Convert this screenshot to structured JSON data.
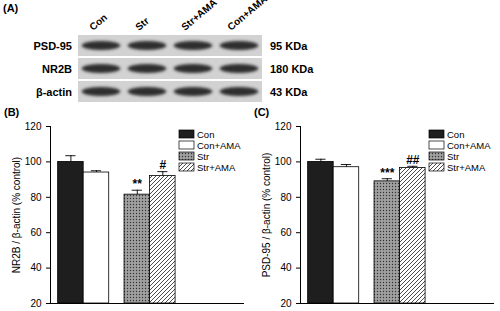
{
  "blot": {
    "panel": "(A)",
    "lanes": [
      "Con",
      "Str",
      "Str+AMA",
      "Con+AMA"
    ],
    "rows": [
      {
        "protein": "PSD-95",
        "size": "95 KDa"
      },
      {
        "protein": "NR2B",
        "size": "180 KDa"
      },
      {
        "protein": "β-actin",
        "size": "43 KDa"
      }
    ]
  },
  "chart_data": [
    {
      "type": "bar",
      "title": "(B)",
      "ylabel": "NR2B / β-actin (% control)",
      "categories": [
        "Con",
        "Con+AMA",
        "Str",
        "Str+AMA"
      ],
      "values": [
        100,
        94,
        81.5,
        92
      ],
      "errors": [
        3.5,
        1,
        2.5,
        2.5
      ],
      "significance": [
        null,
        null,
        "**",
        "#"
      ],
      "colors": [
        "#1e1e1e",
        "#ffffff",
        "#a0a0a0",
        "#ffffff"
      ],
      "ylim": [
        20,
        120
      ],
      "yticks": [
        20,
        40,
        60,
        80,
        100,
        120
      ],
      "legend": "top-right",
      "tick_labels": "y"
    },
    {
      "type": "bar",
      "title": "(C)",
      "ylabel": "PSD-95 / β-actin (% control)",
      "categories": [
        "Con",
        "Con+AMA",
        "Str",
        "Str+AMA"
      ],
      "values": [
        100,
        97,
        89,
        96.5
      ],
      "errors": [
        1.5,
        1.5,
        1.5,
        1
      ],
      "significance": [
        null,
        null,
        "***",
        "##"
      ],
      "colors": [
        "#1e1e1e",
        "#ffffff",
        "#a0a0a0",
        "#ffffff"
      ],
      "ylim": [
        20,
        120
      ],
      "yticks": [
        20,
        40,
        60,
        80,
        100,
        120
      ],
      "legend": "top-right",
      "tick_labels": "y"
    }
  ]
}
